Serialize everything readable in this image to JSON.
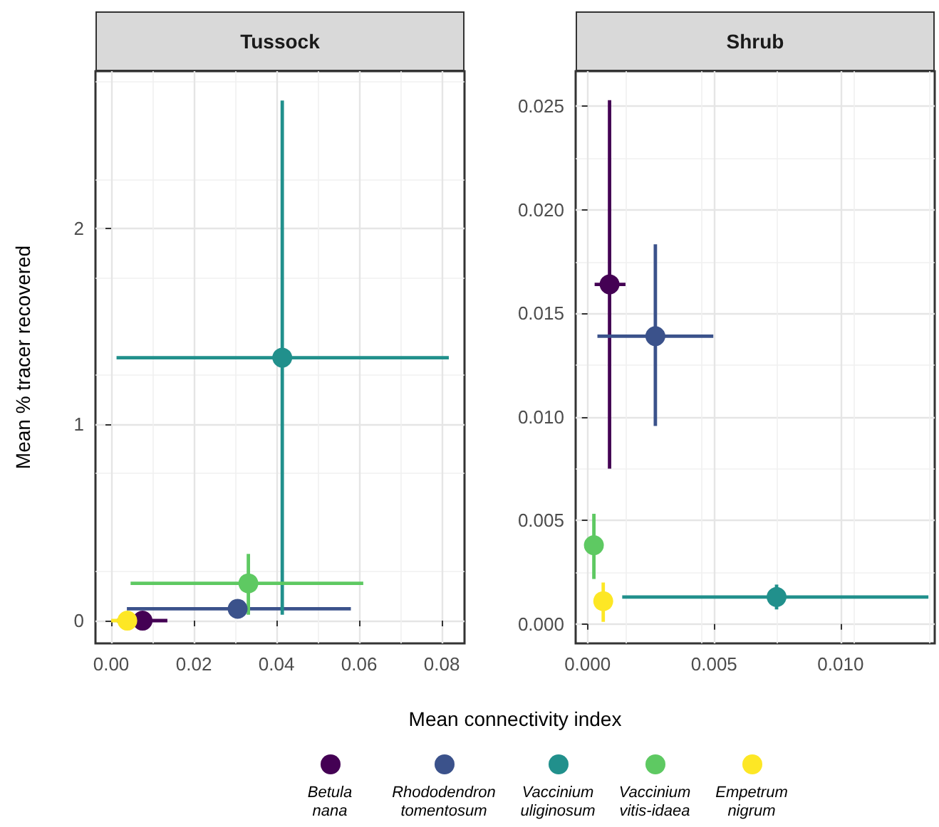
{
  "chart_data": [
    {
      "type": "scatter",
      "title": "Tussock",
      "xlabel": "Mean connectivity index",
      "ylabel": "Mean % tracer recovered",
      "legend": "bottom",
      "grid": true,
      "marker": "circle",
      "xlim": [
        -0.0038,
        0.0855
      ],
      "ylim": [
        -0.116,
        2.8
      ],
      "xticks": [
        {
          "value": 0,
          "label": "0.00"
        },
        {
          "value": 0.02,
          "label": "0.02"
        },
        {
          "value": 0.04,
          "label": "0.04"
        },
        {
          "value": 0.06,
          "label": "0.06"
        },
        {
          "value": 0.08,
          "label": "0.08"
        }
      ],
      "yticks": [
        0,
        1,
        2
      ],
      "series": [
        {
          "name": "Betula nana",
          "color": "#440154",
          "x": [
            0.0076
          ],
          "values": [
            0.0
          ],
          "xerrors": [
            [
              0.0014,
              0.0136
            ]
          ],
          "errors": [
            null
          ]
        },
        {
          "name": "Rhododendron tomentosum",
          "color": "#3b528b",
          "x": [
            0.0306
          ],
          "values": [
            0.06
          ],
          "xerrors": [
            [
              0.0038,
              0.058
            ]
          ],
          "errors": [
            null
          ]
        },
        {
          "name": "Vaccinium uliginosum",
          "color": "#21908c",
          "x": [
            0.0414
          ],
          "values": [
            1.34
          ],
          "xerrors": [
            [
              0.0013,
              0.0817
            ]
          ],
          "errors": [
            [
              0.03,
              2.65
            ]
          ]
        },
        {
          "name": "Vaccinium vitis-idaea",
          "color": "#5ec962",
          "x": [
            0.0332
          ],
          "values": [
            0.19
          ],
          "xerrors": [
            [
              0.0047,
              0.061
            ]
          ],
          "errors": [
            [
              0.03,
              0.34
            ]
          ]
        },
        {
          "name": "Empetrum nigrum",
          "color": "#fde725",
          "x": [
            0.0039
          ],
          "values": [
            0.0
          ],
          "xerrors": [
            [
              0.0,
              0.0059
            ]
          ],
          "errors": [
            null
          ]
        }
      ]
    },
    {
      "type": "scatter",
      "title": "Shrub",
      "grid": true,
      "marker": "circle",
      "xlim": [
        -0.00047,
        0.01372
      ],
      "ylim": [
        -0.00094,
        0.0267
      ],
      "xticks": [
        {
          "value": 0,
          "label": "0.000"
        },
        {
          "value": 0.005,
          "label": "0.005"
        },
        {
          "value": 0.01,
          "label": "0.010"
        }
      ],
      "yticks": [
        {
          "value": 0,
          "label": "0.000"
        },
        {
          "value": 0.005,
          "label": "0.005"
        },
        {
          "value": 0.01,
          "label": "0.010"
        },
        {
          "value": 0.015,
          "label": "0.015"
        },
        {
          "value": 0.02,
          "label": "0.020"
        },
        {
          "value": 0.025,
          "label": "0.025"
        }
      ],
      "series": [
        {
          "color": "#440154",
          "x": [
            0.00087
          ],
          "values": [
            0.0164
          ],
          "xerrors": [
            [
              0.00028,
              0.0015
            ]
          ],
          "errors": [
            [
              0.0075,
              0.0253
            ]
          ]
        },
        {
          "color": "#3b528b",
          "x": [
            0.00268
          ],
          "values": [
            0.0139
          ],
          "xerrors": [
            [
              0.00039,
              0.00497
            ]
          ],
          "errors": [
            [
              0.00956,
              0.01834
            ]
          ]
        },
        {
          "color": "#21908c",
          "x": [
            0.00747
          ],
          "values": [
            0.0013
          ],
          "xerrors": [
            [
              0.00137,
              0.01347
            ]
          ],
          "errors": [
            [
              0.0007,
              0.0019
            ]
          ]
        },
        {
          "color": "#5ec962",
          "x": [
            0.00025
          ],
          "values": [
            0.0038
          ],
          "xerrors": [
            null
          ],
          "errors": [
            [
              0.00217,
              0.00532
            ]
          ]
        },
        {
          "color": "#fde725",
          "x": [
            0.00062
          ],
          "values": [
            0.0011
          ],
          "xerrors": [
            null
          ],
          "errors": [
            [
              0.0001,
              0.002
            ]
          ]
        }
      ]
    }
  ]
}
